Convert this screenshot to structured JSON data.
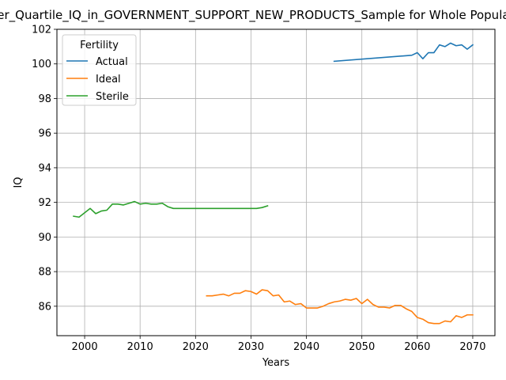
{
  "chart_data": {
    "type": "line",
    "title": "Lower_Quartile_IQ_in_GOVERNMENT_SUPPORT_NEW_PRODUCTS_Sample for Whole Population",
    "xlabel": "Years",
    "ylabel": "IQ",
    "xlim": [
      1995,
      2074
    ],
    "ylim": [
      84.3,
      102.0
    ],
    "xticks": [
      2000,
      2010,
      2020,
      2030,
      2040,
      2050,
      2060,
      2070
    ],
    "yticks": [
      86,
      88,
      90,
      92,
      94,
      96,
      98,
      100,
      102
    ],
    "grid": true,
    "legend": {
      "title": "Fertility",
      "placement": "top-left"
    },
    "series": [
      {
        "name": "Actual",
        "color": "#1f77b4",
        "x": [
          2045,
          2059,
          2060,
          2061,
          2062,
          2063,
          2064,
          2065,
          2066,
          2067,
          2068,
          2069,
          2070
        ],
        "y": [
          100.15,
          100.5,
          100.65,
          100.3,
          100.65,
          100.65,
          101.1,
          101.0,
          101.2,
          101.05,
          101.1,
          100.85,
          101.1
        ]
      },
      {
        "name": "Ideal",
        "color": "#ff7f0e",
        "x": [
          2022,
          2023,
          2024,
          2025,
          2026,
          2027,
          2028,
          2029,
          2030,
          2031,
          2032,
          2033,
          2034,
          2035,
          2036,
          2037,
          2038,
          2039,
          2040,
          2041,
          2042,
          2043,
          2044,
          2045,
          2046,
          2047,
          2048,
          2049,
          2050,
          2051,
          2052,
          2053,
          2054,
          2055,
          2056,
          2057,
          2058,
          2059,
          2060,
          2061,
          2062,
          2063,
          2064,
          2065,
          2066,
          2067,
          2068,
          2069,
          2070
        ],
        "y": [
          86.6,
          86.6,
          86.65,
          86.7,
          86.6,
          86.75,
          86.75,
          86.9,
          86.85,
          86.7,
          86.95,
          86.9,
          86.6,
          86.65,
          86.25,
          86.3,
          86.1,
          86.15,
          85.9,
          85.9,
          85.9,
          86.0,
          86.15,
          86.25,
          86.3,
          86.4,
          86.35,
          86.45,
          86.15,
          86.4,
          86.1,
          85.95,
          85.95,
          85.9,
          86.05,
          86.05,
          85.85,
          85.7,
          85.35,
          85.25,
          85.05,
          85.0,
          85.0,
          85.15,
          85.1,
          85.45,
          85.35,
          85.5,
          85.5
        ]
      },
      {
        "name": "Sterile",
        "color": "#2ca02c",
        "x": [
          1998,
          1999,
          2000,
          2001,
          2002,
          2003,
          2004,
          2005,
          2006,
          2007,
          2008,
          2009,
          2010,
          2011,
          2012,
          2013,
          2014,
          2015,
          2016,
          2017,
          2018,
          2019,
          2020,
          2021,
          2022,
          2023,
          2024,
          2025,
          2026,
          2027,
          2028,
          2029,
          2030,
          2031,
          2032,
          2033
        ],
        "y": [
          91.2,
          91.15,
          91.4,
          91.65,
          91.35,
          91.5,
          91.55,
          91.9,
          91.9,
          91.85,
          91.95,
          92.05,
          91.9,
          91.95,
          91.9,
          91.9,
          91.95,
          91.75,
          91.65,
          91.65,
          91.65,
          91.65,
          91.65,
          91.65,
          91.65,
          91.65,
          91.65,
          91.65,
          91.65,
          91.65,
          91.65,
          91.65,
          91.65,
          91.65,
          91.7,
          91.8
        ]
      }
    ]
  }
}
